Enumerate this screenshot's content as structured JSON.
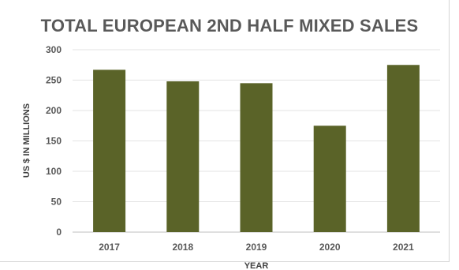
{
  "chart_data": {
    "type": "bar",
    "title": "TOTAL EUROPEAN 2ND HALF MIXED SALES",
    "xlabel": "YEAR",
    "ylabel": "US $ IN MILLIONS",
    "categories": [
      "2017",
      "2018",
      "2019",
      "2020",
      "2021"
    ],
    "values": [
      267,
      248,
      245,
      175,
      275
    ],
    "ylim": [
      0,
      300
    ],
    "yticks": [
      "0",
      "50",
      "100",
      "150",
      "200",
      "250",
      "300"
    ],
    "grid": true,
    "legend": "none",
    "bar_color": "#5a6328"
  }
}
